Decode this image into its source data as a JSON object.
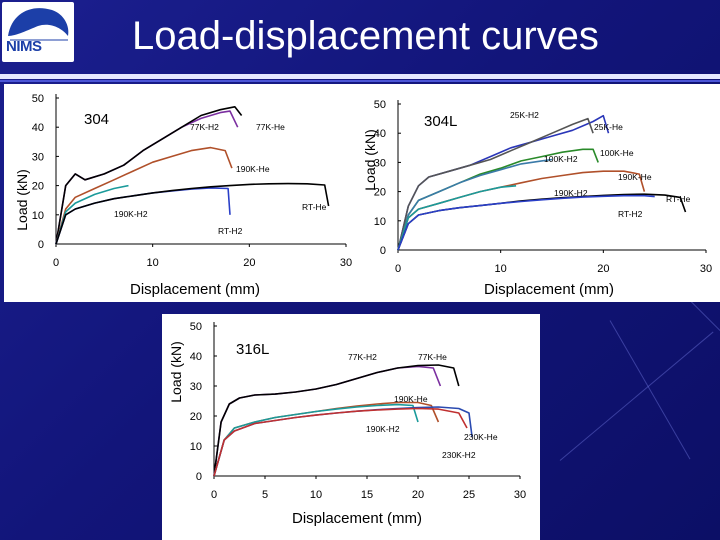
{
  "header": {
    "title": "Load-displacement curves",
    "logo_text": "NIMS",
    "logo_icon": "nims-logo-icon"
  },
  "colors": {
    "background": "#12157a",
    "title": "#ffffff",
    "H2_77K": "#7b2fa0",
    "He_77K": "#000000",
    "He_190K": "#b0502a",
    "H2_190K": "#1a9a9a",
    "H2_RT": "#2a3fc8",
    "He_RT": "#000000",
    "H2_25K": "#2a36b8",
    "He_25K": "#555555",
    "He_100K": "#2a8a2a",
    "H2_100K": "#3a7aa8",
    "He_230K": "#2a4ab0",
    "H2_230K": "#c03030"
  },
  "chart_data": [
    {
      "type": "line",
      "material": "304",
      "xlabel": "Displacement (mm)",
      "ylabel": "Load (kN)",
      "xlim": [
        0,
        30
      ],
      "ylim": [
        0,
        50
      ],
      "xticks": [
        0,
        10,
        20,
        30
      ],
      "yticks": [
        0,
        10,
        20,
        30,
        40,
        50
      ],
      "grid": false,
      "series": [
        {
          "name": "77K-H2",
          "x": [
            0,
            1,
            2,
            3,
            5,
            7,
            9,
            11,
            13,
            15,
            17,
            18,
            18.8
          ],
          "y": [
            0,
            20,
            24,
            22,
            24,
            27,
            32,
            36,
            40,
            43,
            45,
            45.5,
            40
          ]
        },
        {
          "name": "77K-He",
          "x": [
            0,
            1,
            2,
            3,
            5,
            7,
            9,
            11,
            13,
            15,
            17,
            18.5,
            19.2
          ],
          "y": [
            0,
            20,
            24,
            22,
            24,
            27,
            32,
            36,
            40,
            44,
            46,
            47,
            44
          ]
        },
        {
          "name": "190K-He",
          "x": [
            0,
            1,
            2,
            4,
            6,
            8,
            10,
            12,
            14,
            16,
            17.5,
            18.2
          ],
          "y": [
            0,
            12,
            16,
            19,
            22,
            25,
            28,
            30,
            32,
            33,
            32,
            26
          ]
        },
        {
          "name": "190K-H2",
          "x": [
            0,
            1,
            2,
            4,
            6,
            7.5
          ],
          "y": [
            0,
            11,
            14,
            17,
            19,
            20
          ]
        },
        {
          "name": "RT-H2",
          "x": [
            0,
            1,
            2,
            4,
            6,
            8,
            10,
            12,
            14,
            16,
            17.8,
            18
          ],
          "y": [
            0,
            10,
            12,
            14,
            15.5,
            16.5,
            17.5,
            18.2,
            18.8,
            19.2,
            19,
            10
          ]
        },
        {
          "name": "RT-He",
          "x": [
            0,
            1,
            2,
            4,
            6,
            8,
            10,
            12,
            14,
            16,
            18,
            20,
            22,
            24,
            26,
            27.8,
            28.2
          ],
          "y": [
            0,
            10,
            12,
            14,
            15.5,
            16.5,
            17.5,
            18.3,
            19,
            19.6,
            20,
            20.4,
            20.6,
            20.7,
            20.6,
            20.2,
            13
          ]
        }
      ],
      "annotations": [
        "304",
        "77K-H2",
        "77K-He",
        "190K-He",
        "190K-H2",
        "RT-H2",
        "RT-He"
      ]
    },
    {
      "type": "line",
      "material": "304L",
      "xlabel": "Displacement (mm)",
      "ylabel": "Load (kN)",
      "xlim": [
        0,
        30
      ],
      "ylim": [
        0,
        50
      ],
      "xticks": [
        0,
        10,
        20,
        30
      ],
      "yticks": [
        0,
        10,
        20,
        30,
        40,
        50
      ],
      "grid": false,
      "series": [
        {
          "name": "25K-H2",
          "x": [
            0,
            1,
            2,
            3,
            5,
            7,
            9,
            11,
            13,
            15,
            17,
            19,
            20,
            20.5
          ],
          "y": [
            0,
            15,
            22,
            25,
            27,
            29,
            32,
            35,
            37,
            39,
            41,
            44,
            46,
            40
          ]
        },
        {
          "name": "25K-He",
          "x": [
            0,
            1,
            2,
            3,
            5,
            7,
            9,
            11,
            13,
            15,
            17,
            18.5,
            19
          ],
          "y": [
            0,
            15,
            22,
            25,
            27,
            29,
            31,
            34,
            37,
            40,
            43,
            45,
            40
          ]
        },
        {
          "name": "100K-He",
          "x": [
            0,
            1,
            2,
            4,
            6,
            8,
            10,
            12,
            14,
            16,
            18,
            19,
            19.5
          ],
          "y": [
            0,
            12,
            17,
            20,
            23,
            26,
            28,
            30.5,
            32,
            33.5,
            34.5,
            34.5,
            30
          ]
        },
        {
          "name": "100K-H2",
          "x": [
            0,
            1,
            2,
            4,
            6,
            8,
            10,
            12,
            14,
            15
          ],
          "y": [
            0,
            12,
            17,
            20,
            23,
            25.5,
            27.5,
            29.5,
            30.5,
            31
          ]
        },
        {
          "name": "190K-He",
          "x": [
            0,
            1,
            2,
            4,
            6,
            8,
            10,
            12,
            14,
            16,
            18,
            20,
            22,
            23.5,
            24
          ],
          "y": [
            0,
            11,
            14,
            16,
            18,
            20,
            21.5,
            23,
            24.5,
            25.5,
            26.5,
            27,
            27,
            26,
            20
          ]
        },
        {
          "name": "190K-H2",
          "x": [
            0,
            1,
            2,
            4,
            6,
            8,
            10,
            11.5
          ],
          "y": [
            0,
            11,
            14,
            16,
            18,
            20,
            21.5,
            22
          ]
        },
        {
          "name": "RT-He",
          "x": [
            0,
            1,
            2,
            4,
            6,
            8,
            10,
            12,
            14,
            16,
            18,
            20,
            22,
            24,
            26,
            27.5,
            28
          ],
          "y": [
            0,
            9,
            12,
            13.5,
            14.5,
            15.2,
            16,
            16.8,
            17.4,
            17.9,
            18.3,
            18.7,
            19,
            19.1,
            18.8,
            18,
            13
          ]
        },
        {
          "name": "RT-H2",
          "x": [
            0,
            1,
            2,
            4,
            6,
            8,
            10,
            12,
            14,
            16,
            18,
            20,
            22,
            24,
            25
          ],
          "y": [
            0,
            9,
            12,
            13.5,
            14.5,
            15.2,
            16,
            16.6,
            17.2,
            17.7,
            18.1,
            18.4,
            18.6,
            18.6,
            18.3
          ]
        }
      ],
      "annotations": [
        "304L",
        "25K-H2",
        "25K-He",
        "100K-He",
        "100K-H2",
        "190K-He",
        "190K-H2",
        "RT-He",
        "RT-H2"
      ]
    },
    {
      "type": "line",
      "material": "316L",
      "xlabel": "Displacement (mm)",
      "ylabel": "Load (kN)",
      "xlim": [
        0,
        30
      ],
      "ylim": [
        0,
        50
      ],
      "xticks": [
        0,
        5,
        10,
        15,
        20,
        25,
        30
      ],
      "yticks": [
        0,
        10,
        20,
        30,
        40,
        50
      ],
      "grid": false,
      "series": [
        {
          "name": "77K-H2",
          "x": [
            0,
            0.7,
            1.5,
            2.5,
            4,
            6,
            8,
            10,
            12,
            14,
            16,
            18,
            20,
            21.5,
            22.2
          ],
          "y": [
            0,
            18,
            24,
            26,
            27,
            27.3,
            28,
            29,
            30.5,
            32.5,
            34.5,
            36,
            36.5,
            36,
            30
          ]
        },
        {
          "name": "77K-He",
          "x": [
            0,
            0.7,
            1.5,
            2.5,
            4,
            6,
            8,
            10,
            12,
            14,
            16,
            18,
            20,
            22,
            23.5,
            24
          ],
          "y": [
            0,
            18,
            24,
            26,
            27,
            27.3,
            28,
            29,
            30.5,
            32.5,
            34.5,
            36,
            36.8,
            37,
            36,
            30
          ]
        },
        {
          "name": "190K-He",
          "x": [
            0,
            1,
            2,
            4,
            6,
            8,
            10,
            12,
            14,
            16,
            18,
            20,
            21.3,
            22
          ],
          "y": [
            0,
            12,
            16,
            18,
            19.5,
            20.5,
            21.5,
            22.5,
            23.3,
            24,
            24.5,
            24.5,
            23.5,
            18
          ]
        },
        {
          "name": "190K-H2",
          "x": [
            0,
            1,
            2,
            4,
            6,
            8,
            10,
            12,
            14,
            16,
            18,
            19.5,
            20
          ],
          "y": [
            0,
            12,
            16,
            18,
            19.5,
            20.5,
            21.5,
            22.3,
            23,
            23.5,
            23.8,
            23.5,
            18
          ]
        },
        {
          "name": "230K-He",
          "x": [
            0,
            1,
            2,
            4,
            6,
            8,
            10,
            12,
            14,
            16,
            18,
            20,
            22,
            24,
            25,
            25.3
          ],
          "y": [
            0,
            12,
            15,
            17.5,
            18.5,
            19.5,
            20.3,
            21,
            21.6,
            22.1,
            22.5,
            22.8,
            23,
            22.5,
            21,
            13
          ]
        },
        {
          "name": "230K-H2",
          "x": [
            0,
            1,
            2,
            4,
            6,
            8,
            10,
            12,
            14,
            16,
            18,
            20,
            22,
            24,
            24.8
          ],
          "y": [
            0,
            12,
            15,
            17.5,
            18.5,
            19.5,
            20.3,
            21,
            21.6,
            22,
            22.3,
            22.5,
            22.3,
            21,
            16
          ]
        }
      ],
      "annotations": [
        "316L",
        "77K-H2",
        "77K-He",
        "190K-He",
        "190K-H2",
        "230K-He",
        "230K-H2"
      ]
    }
  ]
}
